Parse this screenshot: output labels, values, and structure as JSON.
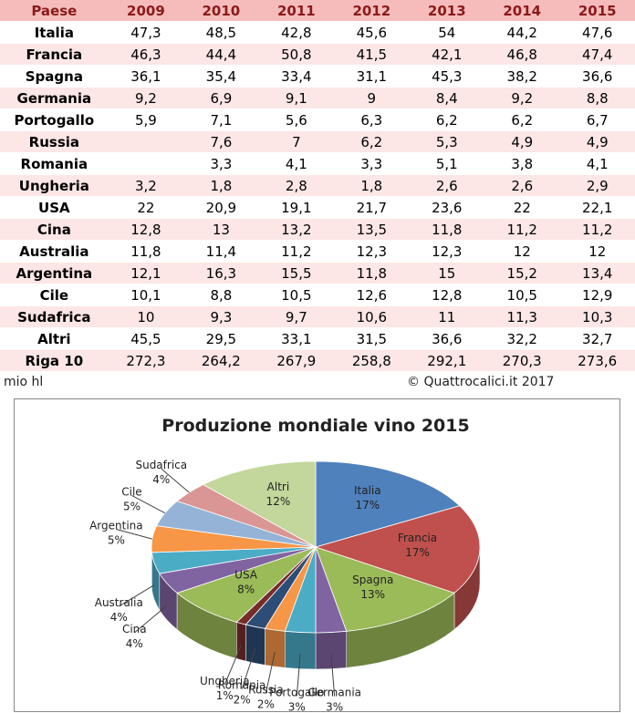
{
  "table": {
    "header": [
      "Paese",
      "2009",
      "2010",
      "2011",
      "2012",
      "2013",
      "2014",
      "2015"
    ],
    "rows": [
      [
        "Italia",
        "47,3",
        "48,5",
        "42,8",
        "45,6",
        "54",
        "44,2",
        "47,6"
      ],
      [
        "Francia",
        "46,3",
        "44,4",
        "50,8",
        "41,5",
        "42,1",
        "46,8",
        "47,4"
      ],
      [
        "Spagna",
        "36,1",
        "35,4",
        "33,4",
        "31,1",
        "45,3",
        "38,2",
        "36,6"
      ],
      [
        "Germania",
        "9,2",
        "6,9",
        "9,1",
        "9",
        "8,4",
        "9,2",
        "8,8"
      ],
      [
        "Portogallo",
        "5,9",
        "7,1",
        "5,6",
        "6,3",
        "6,2",
        "6,2",
        "6,7"
      ],
      [
        "Russia",
        null,
        "7,6",
        "7",
        "6,2",
        "5,3",
        "4,9",
        "4,9"
      ],
      [
        "Romania",
        null,
        "3,3",
        "4,1",
        "3,3",
        "5,1",
        "3,8",
        "4,1"
      ],
      [
        "Ungheria",
        "3,2",
        "1,8",
        "2,8",
        "1,8",
        "2,6",
        "2,6",
        "2,9"
      ],
      [
        "USA",
        "22",
        "20,9",
        "19,1",
        "21,7",
        "23,6",
        "22",
        "22,1"
      ],
      [
        "Cina",
        "12,8",
        "13",
        "13,2",
        "13,5",
        "11,8",
        "11,2",
        "11,2"
      ],
      [
        "Australia",
        "11,8",
        "11,4",
        "11,2",
        "12,3",
        "12,3",
        "12",
        "12"
      ],
      [
        "Argentina",
        "12,1",
        "16,3",
        "15,5",
        "11,8",
        "15",
        "15,2",
        "13,4"
      ],
      [
        "Cile",
        "10,1",
        "8,8",
        "10,5",
        "12,6",
        "12,8",
        "10,5",
        "12,9"
      ],
      [
        "Sudafrica",
        "10",
        "9,3",
        "9,7",
        "10,6",
        "11",
        "11,3",
        "10,3"
      ],
      [
        "Altri",
        "45,5",
        "29,5",
        "33,1",
        "31,5",
        "36,6",
        "32,2",
        "32,7"
      ],
      [
        "Riga 10",
        "272,3",
        "264,2",
        "267,9",
        "258,8",
        "292,1",
        "270,3",
        "273,6"
      ]
    ]
  },
  "footer": {
    "unit": "mio hl",
    "credit": "© Quattrocalici.it 2017"
  },
  "chart_data": {
    "type": "pie",
    "title": "Produzione mondiale vino 2015",
    "categories": [
      "Italia",
      "Francia",
      "Spagna",
      "Germania",
      "Portogallo",
      "Russia",
      "Romania",
      "Ungheria",
      "USA",
      "Cina",
      "Australia",
      "Argentina",
      "Cile",
      "Sudafrica",
      "Altri"
    ],
    "values": [
      17,
      17,
      13,
      3,
      3,
      2,
      2,
      1,
      8,
      4,
      4,
      5,
      5,
      4,
      12
    ],
    "value_labels": [
      "17%",
      "17%",
      "13%",
      "3%",
      "3%",
      "2%",
      "2%",
      "1%",
      "8%",
      "4%",
      "4%",
      "5%",
      "5%",
      "4%",
      "12%"
    ],
    "colors": [
      "#4f81bd",
      "#c0504d",
      "#9bbb59",
      "#8064a2",
      "#4bacc6",
      "#f79646",
      "#2c4d75",
      "#772c2a",
      "#9bbb59",
      "#8064a2",
      "#4bacc6",
      "#f79646",
      "#95b3d7",
      "#d99694",
      "#c3d69b"
    ]
  }
}
